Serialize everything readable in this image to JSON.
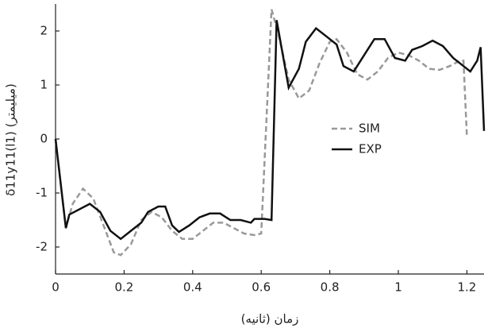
{
  "chart_data": {
    "type": "line",
    "xlabel": "زمان (ثانیه)",
    "ylabel": "δ11y11(l1) (میلیمتر)",
    "xlim": [
      0,
      1.25
    ],
    "xticks": [
      0,
      0.2,
      0.4,
      0.6,
      0.8,
      1,
      1.2
    ],
    "ylim": [
      -2.5,
      2.5
    ],
    "yticks": [
      -2,
      -1,
      0,
      1,
      2
    ],
    "legend": "center-right",
    "series": [
      {
        "name": "SIM",
        "color": "#999999",
        "line_style": "dashed",
        "x": [
          0,
          0.03,
          0.05,
          0.08,
          0.11,
          0.14,
          0.17,
          0.19,
          0.22,
          0.25,
          0.28,
          0.31,
          0.34,
          0.37,
          0.4,
          0.43,
          0.46,
          0.49,
          0.52,
          0.55,
          0.58,
          0.6,
          0.63,
          0.65,
          0.68,
          0.71,
          0.74,
          0.77,
          0.8,
          0.82,
          0.85,
          0.88,
          0.91,
          0.94,
          0.97,
          1.0,
          1.03,
          1.06,
          1.09,
          1.12,
          1.15,
          1.18,
          1.19,
          1.2
        ],
        "values": [
          0,
          -1.65,
          -1.2,
          -0.92,
          -1.1,
          -1.6,
          -2.1,
          -2.15,
          -1.95,
          -1.5,
          -1.35,
          -1.45,
          -1.7,
          -1.85,
          -1.85,
          -1.7,
          -1.55,
          -1.55,
          -1.65,
          -1.75,
          -1.78,
          -1.75,
          2.4,
          1.95,
          1.1,
          0.75,
          0.9,
          1.4,
          1.8,
          1.85,
          1.6,
          1.2,
          1.1,
          1.25,
          1.5,
          1.6,
          1.55,
          1.45,
          1.3,
          1.28,
          1.35,
          1.45,
          1.45,
          0.05
        ]
      },
      {
        "name": "EXP",
        "color": "#111111",
        "line_style": "solid",
        "x": [
          0,
          0.03,
          0.04,
          0.1,
          0.13,
          0.16,
          0.19,
          0.22,
          0.25,
          0.27,
          0.3,
          0.32,
          0.34,
          0.36,
          0.39,
          0.42,
          0.45,
          0.48,
          0.51,
          0.54,
          0.57,
          0.58,
          0.61,
          0.63,
          0.645,
          0.68,
          0.71,
          0.73,
          0.76,
          0.79,
          0.82,
          0.84,
          0.87,
          0.9,
          0.93,
          0.96,
          0.99,
          1.02,
          1.04,
          1.07,
          1.1,
          1.13,
          1.16,
          1.19,
          1.21,
          1.23,
          1.24,
          1.25
        ],
        "values": [
          0,
          -1.65,
          -1.4,
          -1.2,
          -1.35,
          -1.7,
          -1.85,
          -1.7,
          -1.55,
          -1.35,
          -1.25,
          -1.25,
          -1.6,
          -1.72,
          -1.6,
          -1.45,
          -1.38,
          -1.38,
          -1.5,
          -1.5,
          -1.55,
          -1.48,
          -1.48,
          -1.5,
          2.2,
          0.95,
          1.3,
          1.8,
          2.05,
          1.9,
          1.75,
          1.35,
          1.25,
          1.55,
          1.85,
          1.85,
          1.5,
          1.45,
          1.65,
          1.72,
          1.82,
          1.72,
          1.5,
          1.35,
          1.25,
          1.45,
          1.7,
          0.15
        ]
      }
    ]
  }
}
